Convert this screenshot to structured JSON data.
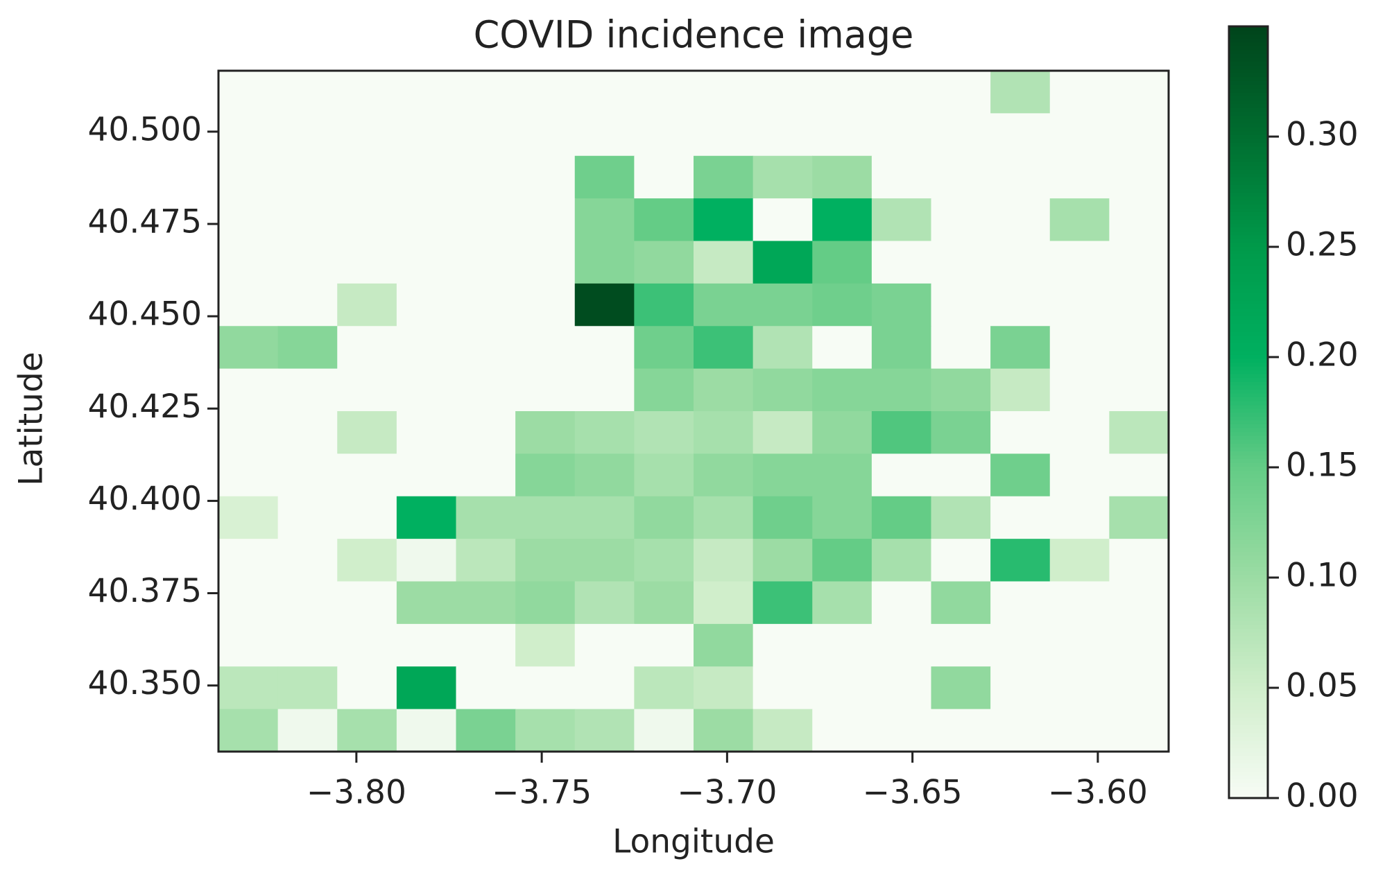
{
  "chart_data": {
    "type": "heatmap",
    "title": "COVID incidence image",
    "x_label": "Longitude",
    "y_label": "Latitude",
    "origin": "upper",
    "xlim": [
      -3.8372,
      -3.5809
    ],
    "ylim": [
      40.3321,
      40.5165
    ],
    "xticks": [
      {
        "value": -3.8,
        "label": "−3.80"
      },
      {
        "value": -3.75,
        "label": "−3.75"
      },
      {
        "value": -3.7,
        "label": "−3.70"
      },
      {
        "value": -3.65,
        "label": "−3.65"
      },
      {
        "value": -3.6,
        "label": "−3.60"
      }
    ],
    "yticks": [
      {
        "value": 40.35,
        "label": "40.350"
      },
      {
        "value": 40.375,
        "label": "40.375"
      },
      {
        "value": 40.4,
        "label": "40.400"
      },
      {
        "value": 40.425,
        "label": "40.425"
      },
      {
        "value": 40.45,
        "label": "40.450"
      },
      {
        "value": 40.475,
        "label": "40.475"
      },
      {
        "value": 40.5,
        "label": "40.500"
      }
    ],
    "clim": [
      0,
      0.35
    ],
    "cticks": [
      {
        "value": 0,
        "label": "0.00"
      },
      {
        "value": 0.05,
        "label": "0.05"
      },
      {
        "value": 0.1,
        "label": "0.10"
      },
      {
        "value": 0.15,
        "label": "0.15"
      },
      {
        "value": 0.2,
        "label": "0.20"
      },
      {
        "value": 0.25,
        "label": "0.25"
      },
      {
        "value": 0.3,
        "label": "0.30"
      }
    ],
    "colormap": [
      "#f7fcf5",
      "#d0eecb",
      "#9cdca4",
      "#64cc86",
      "#00b060",
      "#009a4a",
      "#006e30",
      "#00441b"
    ],
    "z": [
      [
        0,
        0,
        0,
        0,
        0,
        0,
        0,
        0,
        0,
        0,
        0,
        0,
        0,
        0.08,
        0,
        0
      ],
      [
        0,
        0,
        0,
        0,
        0,
        0,
        0,
        0,
        0,
        0,
        0,
        0,
        0,
        0,
        0,
        0
      ],
      [
        0,
        0,
        0,
        0,
        0,
        0,
        0.14,
        0,
        0.13,
        0.09,
        0.1,
        0,
        0,
        0,
        0,
        0
      ],
      [
        0,
        0,
        0,
        0,
        0,
        0,
        0.12,
        0.15,
        0.2,
        0,
        0.2,
        0.08,
        0,
        0,
        0.09,
        0
      ],
      [
        0,
        0,
        0,
        0,
        0,
        0,
        0.12,
        0.11,
        0.06,
        0.22,
        0.15,
        0,
        0,
        0,
        0,
        0
      ],
      [
        0,
        0,
        0.06,
        0,
        0,
        0,
        0.34,
        0.17,
        0.13,
        0.13,
        0.14,
        0.13,
        0,
        0,
        0,
        0
      ],
      [
        0.11,
        0.12,
        0,
        0,
        0,
        0,
        0,
        0.14,
        0.17,
        0.08,
        0,
        0.13,
        0,
        0.13,
        0,
        0
      ],
      [
        0,
        0,
        0,
        0,
        0,
        0,
        0,
        0.12,
        0.1,
        0.11,
        0.12,
        0.12,
        0.11,
        0.06,
        0,
        0
      ],
      [
        0,
        0,
        0.06,
        0,
        0,
        0.1,
        0.09,
        0.08,
        0.09,
        0.06,
        0.11,
        0.16,
        0.13,
        0,
        0,
        0.07
      ],
      [
        0,
        0,
        0,
        0,
        0,
        0.12,
        0.11,
        0.09,
        0.11,
        0.12,
        0.12,
        0,
        0,
        0.14,
        0,
        0
      ],
      [
        0.04,
        0,
        0,
        0.2,
        0.09,
        0.09,
        0.09,
        0.11,
        0.09,
        0.14,
        0.12,
        0.15,
        0.08,
        0,
        0,
        0.09
      ],
      [
        0,
        0,
        0.05,
        0.01,
        0.07,
        0.1,
        0.1,
        0.09,
        0.06,
        0.1,
        0.15,
        0.09,
        0,
        0.18,
        0.05,
        0
      ],
      [
        0,
        0,
        0,
        0.1,
        0.1,
        0.11,
        0.08,
        0.1,
        0.05,
        0.17,
        0.09,
        0,
        0.11,
        0,
        0,
        0
      ],
      [
        0,
        0,
        0,
        0,
        0,
        0.05,
        0,
        0,
        0.11,
        0,
        0,
        0,
        0,
        0,
        0,
        0
      ],
      [
        0.07,
        0.07,
        0,
        0.22,
        0,
        0,
        0,
        0.07,
        0.06,
        0,
        0,
        0,
        0.11,
        0,
        0,
        0
      ],
      [
        0.09,
        0.01,
        0.09,
        0.01,
        0.13,
        0.09,
        0.08,
        0.01,
        0.1,
        0.06,
        0,
        0,
        0,
        0,
        0,
        0
      ]
    ]
  }
}
